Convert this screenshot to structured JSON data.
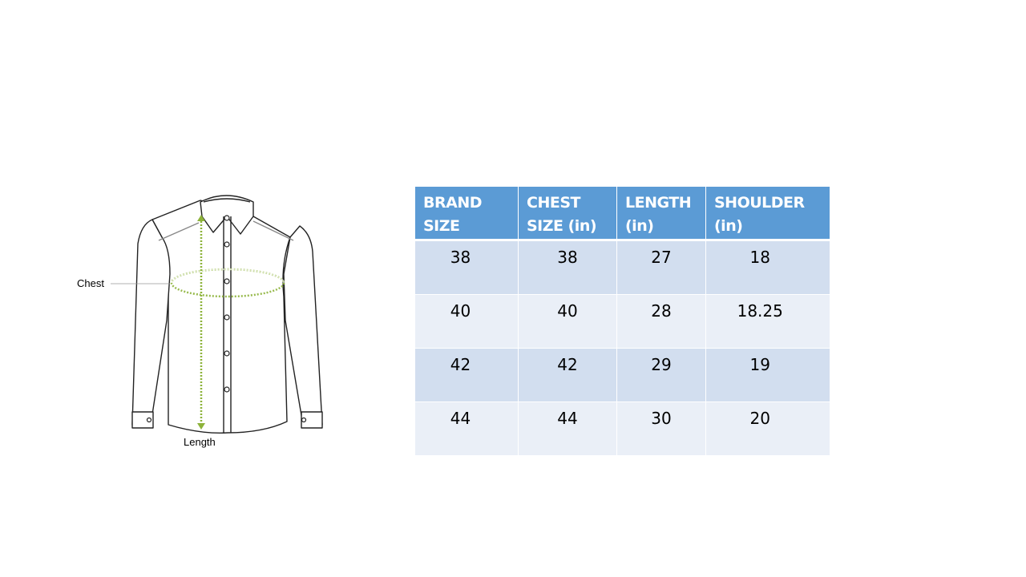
{
  "diagram": {
    "chest_label": "Chest",
    "length_label": "Length",
    "measure_color": "#8db33a"
  },
  "table": {
    "headers": [
      [
        "BRAND",
        "SIZE"
      ],
      [
        "CHEST",
        "SIZE (in)"
      ],
      [
        "LENGTH",
        "(in)"
      ],
      [
        "SHOULDER",
        "(in)"
      ]
    ],
    "rows": [
      [
        "38",
        "38",
        "27",
        "18"
      ],
      [
        "40",
        "40",
        "28",
        "18.25"
      ],
      [
        "42",
        "42",
        "29",
        "19"
      ],
      [
        "44",
        "44",
        "30",
        "20"
      ]
    ],
    "colors": {
      "header": "#5b9bd5",
      "row_odd": "#d2deef",
      "row_even": "#eaeff7"
    }
  }
}
